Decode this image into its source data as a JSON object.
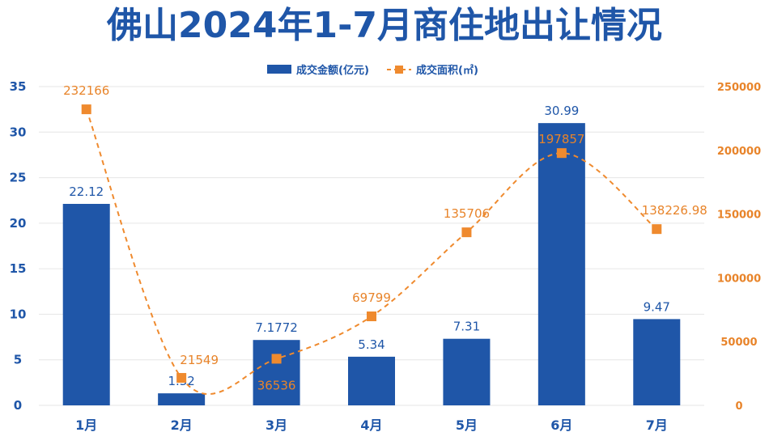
{
  "title": "佛山2024年1-7月商住地出让情况",
  "colors": {
    "bar": "#1f56a8",
    "line": "#ef8a2e",
    "title": "#1f56a8",
    "grid": "#e6e6e6"
  },
  "chart_data": {
    "type": "bar",
    "categories": [
      "1月",
      "2月",
      "3月",
      "4月",
      "5月",
      "6月",
      "7月"
    ],
    "series": [
      {
        "name": "成交金额(亿元)",
        "type": "bar",
        "axis": "left",
        "values": [
          22.12,
          1.32,
          7.1772,
          5.34,
          7.31,
          30.99,
          9.47
        ],
        "labels": [
          "22.12",
          "1.32",
          "7.1772",
          "5.34",
          "7.31",
          "30.99",
          "9.47"
        ]
      },
      {
        "name": "成交面积(㎡)",
        "type": "line",
        "axis": "right",
        "style": "dashed-smooth",
        "marker": "square",
        "values": [
          232166,
          21549,
          36536,
          69799,
          135706,
          197857,
          138226.98
        ],
        "labels": [
          "232166",
          "21549",
          "36536",
          "69799",
          "135706",
          "197857",
          "138226.98"
        ]
      }
    ],
    "y_left": {
      "min": 0,
      "max": 35,
      "ticks": [
        0,
        5,
        10,
        15,
        20,
        25,
        30,
        35
      ]
    },
    "y_right": {
      "min": 0,
      "max": 250000,
      "ticks": [
        0,
        50000,
        100000,
        150000,
        200000,
        250000
      ]
    },
    "grid": true,
    "legend_position": "top-center"
  }
}
